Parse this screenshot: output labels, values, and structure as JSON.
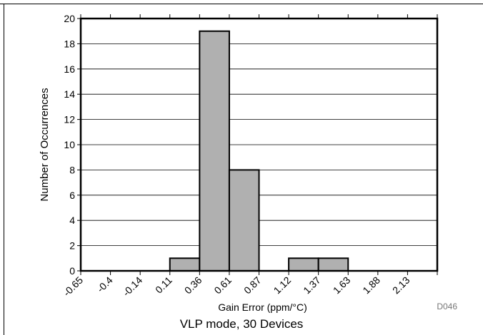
{
  "chart_data": {
    "type": "bar",
    "subtype": "histogram",
    "title": "",
    "xlabel": "Gain Error (ppm/°C)",
    "ylabel": "Number of Occurrences",
    "x_tick_labels": [
      "-0.65",
      "-0.4",
      "-0.14",
      "0.11",
      "0.36",
      "0.61",
      "0.87",
      "1.12",
      "1.37",
      "1.63",
      "1.88",
      "2.13"
    ],
    "bins": [
      {
        "from": "-0.65",
        "to": "-0.4",
        "count": 0
      },
      {
        "from": "-0.4",
        "to": "-0.14",
        "count": 0
      },
      {
        "from": "-0.14",
        "to": "0.11",
        "count": 0
      },
      {
        "from": "0.11",
        "to": "0.36",
        "count": 1
      },
      {
        "from": "0.36",
        "to": "0.61",
        "count": 19
      },
      {
        "from": "0.61",
        "to": "0.87",
        "count": 8
      },
      {
        "from": "0.87",
        "to": "1.12",
        "count": 0
      },
      {
        "from": "1.12",
        "to": "1.37",
        "count": 1
      },
      {
        "from": "1.37",
        "to": "1.63",
        "count": 1
      },
      {
        "from": "1.63",
        "to": "1.88",
        "count": 0
      },
      {
        "from": "1.88",
        "to": "2.13",
        "count": 0
      }
    ],
    "y_ticks": [
      0,
      2,
      4,
      6,
      8,
      10,
      12,
      14,
      16,
      18,
      20
    ],
    "ylim": [
      0,
      20
    ],
    "grid": "horizontal",
    "bar_color": "#b0b0b0"
  },
  "figure_id": "D046",
  "caption": "VLP mode, 30 Devices"
}
